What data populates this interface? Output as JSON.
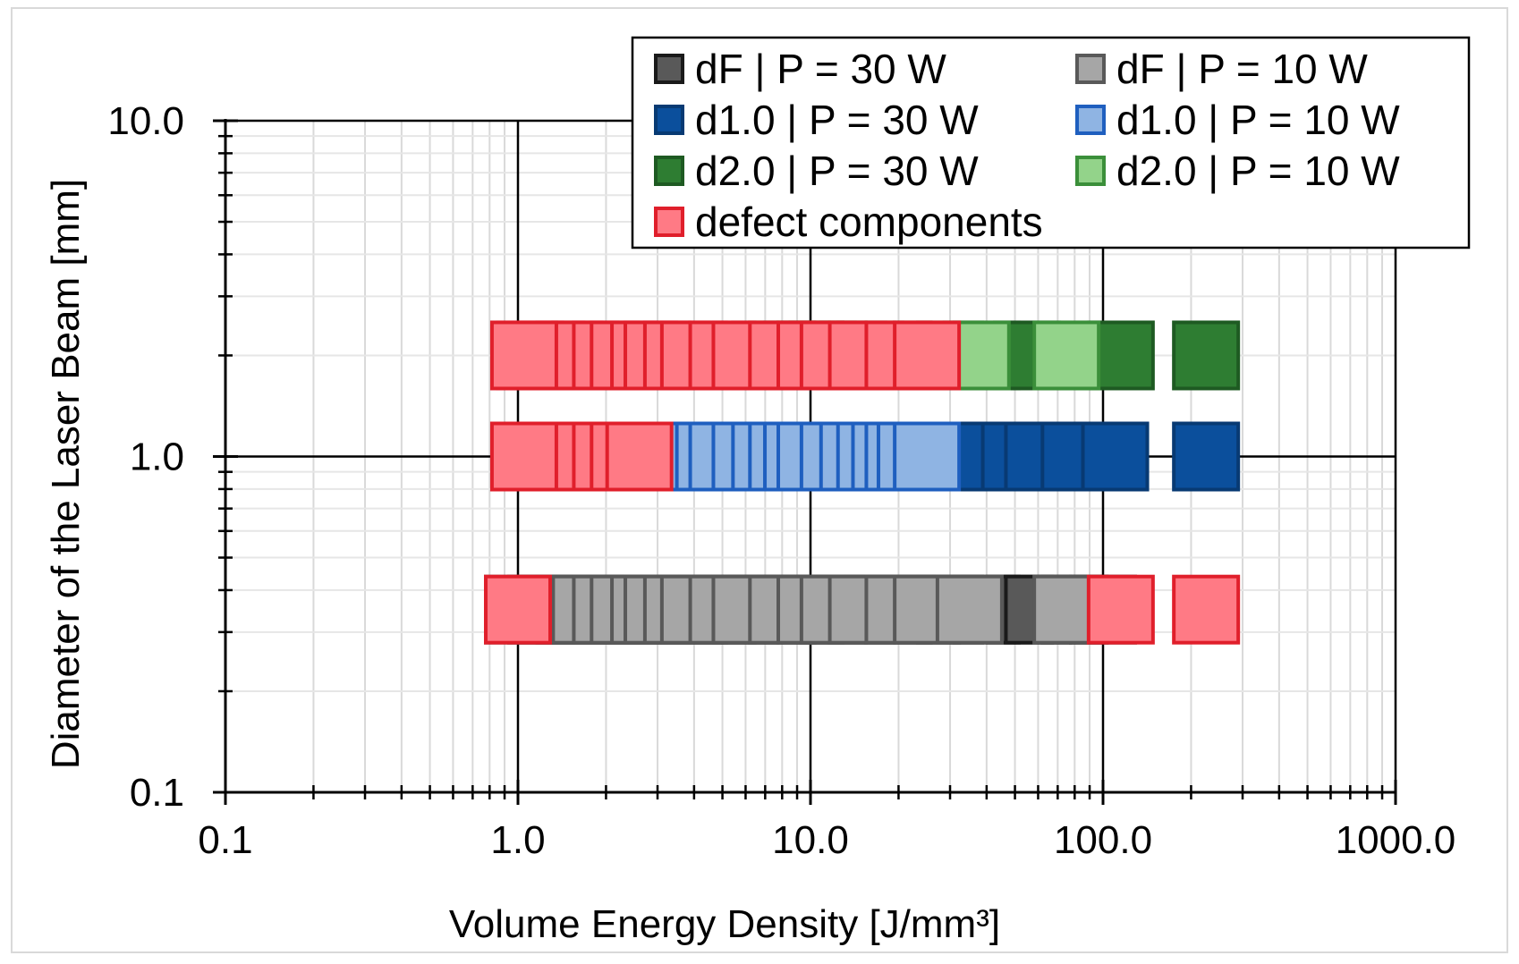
{
  "chart_data": {
    "type": "scatter",
    "xlabel": "Volume Energy Density  [J/mm³]",
    "ylabel": "Diameter of the Laser Beam [mm]",
    "x_scale": "log",
    "y_scale": "log",
    "xlim": [
      0.1,
      1000
    ],
    "ylim": [
      0.1,
      10
    ],
    "x_tick_labels": [
      "0.1",
      "1.0",
      "10.0",
      "100.0",
      "1000.0"
    ],
    "y_tick_labels": [
      "0.1",
      "1.0",
      "10.0"
    ],
    "grid": true,
    "legend_position": "top-right",
    "legend": [
      {
        "label": "dF | P = 30 W",
        "fill": "#595959",
        "stroke": "#1a1a1a"
      },
      {
        "label": "dF | P = 10 W",
        "fill": "#a6a6a6",
        "stroke": "#595959"
      },
      {
        "label": "d1.0 | P = 30 W",
        "fill": "#0b4f9c",
        "stroke": "#083a73"
      },
      {
        "label": "d1.0 | P = 10 W",
        "fill": "#8fb4e3",
        "stroke": "#1f5fbf"
      },
      {
        "label": "d2.0 | P = 30 W",
        "fill": "#2e7d32",
        "stroke": "#1e5a22"
      },
      {
        "label": "d2.0 | P = 10 W",
        "fill": "#93d38a",
        "stroke": "#3b8f3a"
      },
      {
        "label": "defect components",
        "fill": "#ff7a85",
        "stroke": "#e01f2b"
      }
    ],
    "series": [
      {
        "key": "dF_30W",
        "y": 0.35,
        "fill": "#595959",
        "stroke": "#1a1a1a",
        "x": [
          1.2,
          1.5,
          2.0,
          2.5,
          3.0,
          4.0,
          5.0,
          6.0,
          8.0,
          10.0,
          12.0,
          15.0,
          20.0,
          25.0,
          30.0,
          40.0,
          52.0,
          60.0,
          80.0,
          100.0
        ]
      },
      {
        "key": "dF_10W",
        "y": 0.35,
        "fill": "#a6a6a6",
        "stroke": "#595959",
        "x": [
          1.0,
          1.3,
          1.5,
          1.7,
          2.0,
          2.3,
          2.7,
          3.0,
          3.5,
          4.0,
          5.0,
          6.0,
          8.0,
          10.0,
          12.0,
          15.0,
          20.0,
          25.0,
          35.0,
          75.0
        ]
      },
      {
        "key": "d1_30W",
        "y": 1.0,
        "fill": "#0b4f9c",
        "stroke": "#083a73",
        "x": [
          3.0,
          4.0,
          5.0,
          6.0,
          8.0,
          10.0,
          12.0,
          15.0,
          20.0,
          25.0,
          30.0,
          35.0,
          40.0,
          50.0,
          60.0,
          80.0,
          110.0,
          225.0
        ]
      },
      {
        "key": "d1_10W",
        "y": 1.0,
        "fill": "#8fb4e3",
        "stroke": "#1f5fbf",
        "x": [
          1.6,
          1.8,
          2.0,
          2.2,
          2.5,
          2.8,
          3.2,
          3.6,
          4.0,
          4.5,
          5.0,
          6.0,
          7.0,
          8.0,
          9.0,
          10.0,
          12.0,
          14.0,
          16.0,
          18.0,
          20.0,
          22.0,
          25.0
        ]
      },
      {
        "key": "d2_30W",
        "y": 2.0,
        "fill": "#2e7d32",
        "stroke": "#1e5a22",
        "x": [
          30.0,
          40.0,
          55.0,
          75.0,
          115.0,
          225.0
        ]
      },
      {
        "key": "d2_10W",
        "y": 2.0,
        "fill": "#93d38a",
        "stroke": "#3b8f3a",
        "x": [
          7.0,
          8.0,
          9.0,
          10.0,
          11.0,
          12.0,
          14.0,
          16.0,
          20.0,
          25.0,
          37.0,
          75.0
        ]
      },
      {
        "key": "defect",
        "y": 0.35,
        "fill": "#ff7a85",
        "stroke": "#e01f2b",
        "x": [
          1.0,
          115.0,
          225.0
        ]
      },
      {
        "key": "defect",
        "y": 1.0,
        "fill": "#ff7a85",
        "stroke": "#e01f2b",
        "x": [
          1.1,
          1.3,
          1.5,
          1.7,
          2.0,
          2.3,
          2.6,
          1.05
        ]
      },
      {
        "key": "defect",
        "y": 2.0,
        "fill": "#ff7a85",
        "stroke": "#e01f2b",
        "x": [
          1.1,
          1.3,
          1.5,
          1.7,
          2.0,
          2.3,
          2.7,
          3.0,
          3.5,
          4.0,
          5.0,
          6.0,
          8.0,
          10.0,
          12.0,
          15.0,
          20.0,
          25.0,
          1.05
        ]
      }
    ]
  }
}
